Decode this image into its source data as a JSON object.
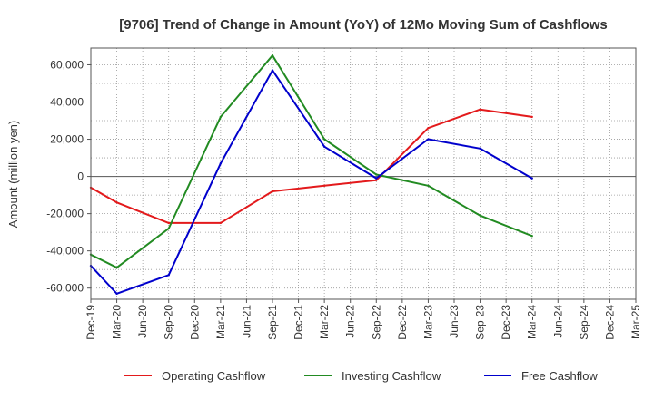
{
  "chart_data": {
    "type": "line",
    "title": "[9706]  Trend of Change in Amount (YoY) of 12Mo Moving Sum of Cashflows",
    "xlabel": "",
    "ylabel": "Amount (million yen)",
    "ylim": [
      -66000,
      69000
    ],
    "yticks": [
      60000,
      40000,
      20000,
      0,
      -20000,
      -40000,
      -60000
    ],
    "ytick_labels": [
      "60,000",
      "40,000",
      "20,000",
      "0",
      "-20,000",
      "-40,000",
      "-60,000"
    ],
    "categories": [
      "Dec-19",
      "Mar-20",
      "Jun-20",
      "Sep-20",
      "Dec-20",
      "Mar-21",
      "Jun-21",
      "Sep-21",
      "Dec-21",
      "Mar-22",
      "Jun-22",
      "Sep-22",
      "Dec-22",
      "Mar-23",
      "Jun-23",
      "Sep-23",
      "Dec-23",
      "Mar-24",
      "Jun-24",
      "Sep-24",
      "Dec-24",
      "Mar-25"
    ],
    "grid": true,
    "legend_position": "bottom",
    "series": [
      {
        "name": "Operating Cashflow",
        "color": "#e31a1c",
        "values": [
          -6000,
          -14000,
          null,
          -25000,
          null,
          -25000,
          null,
          -8000,
          null,
          -5000,
          null,
          -2000,
          null,
          26000,
          null,
          36000,
          null,
          32000,
          null,
          null,
          null,
          null
        ]
      },
      {
        "name": "Investing Cashflow",
        "color": "#228b22",
        "values": [
          -42000,
          -49000,
          null,
          -28000,
          null,
          32000,
          null,
          65000,
          null,
          20000,
          null,
          1000,
          null,
          -5000,
          null,
          -21000,
          null,
          -32000,
          null,
          null,
          null,
          null
        ]
      },
      {
        "name": "Free Cashflow",
        "color": "#0000cc",
        "values": [
          -48000,
          -63000,
          null,
          -53000,
          null,
          7000,
          null,
          57000,
          null,
          16000,
          null,
          -1000,
          null,
          20000,
          null,
          15000,
          null,
          -1000,
          null,
          null,
          null,
          null
        ]
      }
    ]
  }
}
